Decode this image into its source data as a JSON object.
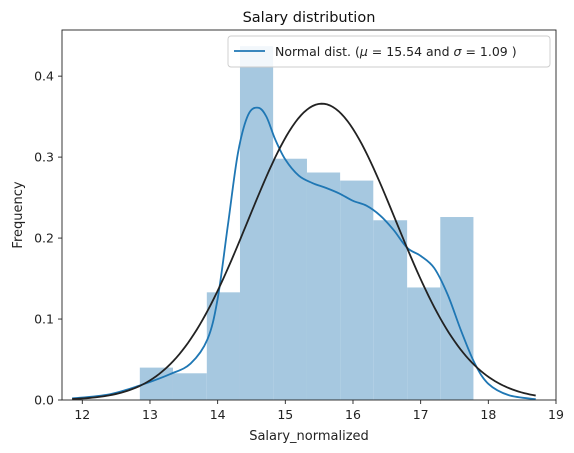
{
  "chart_data": {
    "type": "bar",
    "title": "Salary distribution",
    "xlabel": "Salary_normalized",
    "ylabel": "Frequency",
    "xlim": [
      11.7,
      19.0
    ],
    "ylim": [
      0.0,
      0.457
    ],
    "xticks": [
      "12",
      "13",
      "14",
      "15",
      "16",
      "17",
      "18",
      "19"
    ],
    "yticks": [
      "0.0",
      "0.1",
      "0.2",
      "0.3",
      "0.4"
    ],
    "histogram": {
      "name": "Salary_normalized",
      "color": "#a6c8e0",
      "bins": [
        {
          "x0": 12.85,
          "x1": 13.34,
          "height": 0.04
        },
        {
          "x0": 13.34,
          "x1": 13.84,
          "height": 0.033
        },
        {
          "x0": 13.84,
          "x1": 14.33,
          "height": 0.133
        },
        {
          "x0": 14.33,
          "x1": 14.82,
          "height": 0.437
        },
        {
          "x0": 14.82,
          "x1": 15.32,
          "height": 0.298
        },
        {
          "x0": 15.32,
          "x1": 15.81,
          "height": 0.281
        },
        {
          "x0": 15.81,
          "x1": 16.3,
          "height": 0.271
        },
        {
          "x0": 16.3,
          "x1": 16.8,
          "height": 0.222
        },
        {
          "x0": 16.8,
          "x1": 17.29,
          "height": 0.139
        },
        {
          "x0": 17.29,
          "x1": 17.78,
          "height": 0.226
        }
      ]
    },
    "series": [
      {
        "kind": "kde",
        "color": "#1f77b4",
        "x": [
          11.85,
          12.4,
          12.85,
          13.3,
          13.6,
          13.85,
          14.0,
          14.15,
          14.3,
          14.45,
          14.6,
          14.72,
          14.85,
          15.0,
          15.2,
          15.4,
          15.6,
          15.8,
          16.0,
          16.2,
          16.4,
          16.6,
          16.8,
          17.0,
          17.2,
          17.4,
          17.6,
          17.8,
          18.0,
          18.3,
          18.7
        ],
        "y": [
          0.002,
          0.007,
          0.018,
          0.032,
          0.045,
          0.075,
          0.125,
          0.215,
          0.305,
          0.352,
          0.361,
          0.35,
          0.322,
          0.297,
          0.277,
          0.268,
          0.262,
          0.255,
          0.246,
          0.24,
          0.228,
          0.21,
          0.188,
          0.178,
          0.163,
          0.13,
          0.085,
          0.045,
          0.02,
          0.006,
          0.001
        ]
      },
      {
        "name": "Normal dist. ($\\mu=$ 15.54 and $\\sigma=$ 1.09 )",
        "kind": "normal_fit",
        "color": "#222222",
        "mu": 15.54,
        "sigma": 1.09,
        "x_range": [
          11.85,
          18.7
        ]
      }
    ],
    "legend": {
      "position": "top-right",
      "prefix": "Normal dist. (",
      "mu_symbol": "μ",
      "mu_value": "= 15.54",
      "and": "and",
      "sigma_symbol": "σ",
      "sigma_value": "= 1.09",
      "suffix": ")"
    },
    "grid": false
  }
}
